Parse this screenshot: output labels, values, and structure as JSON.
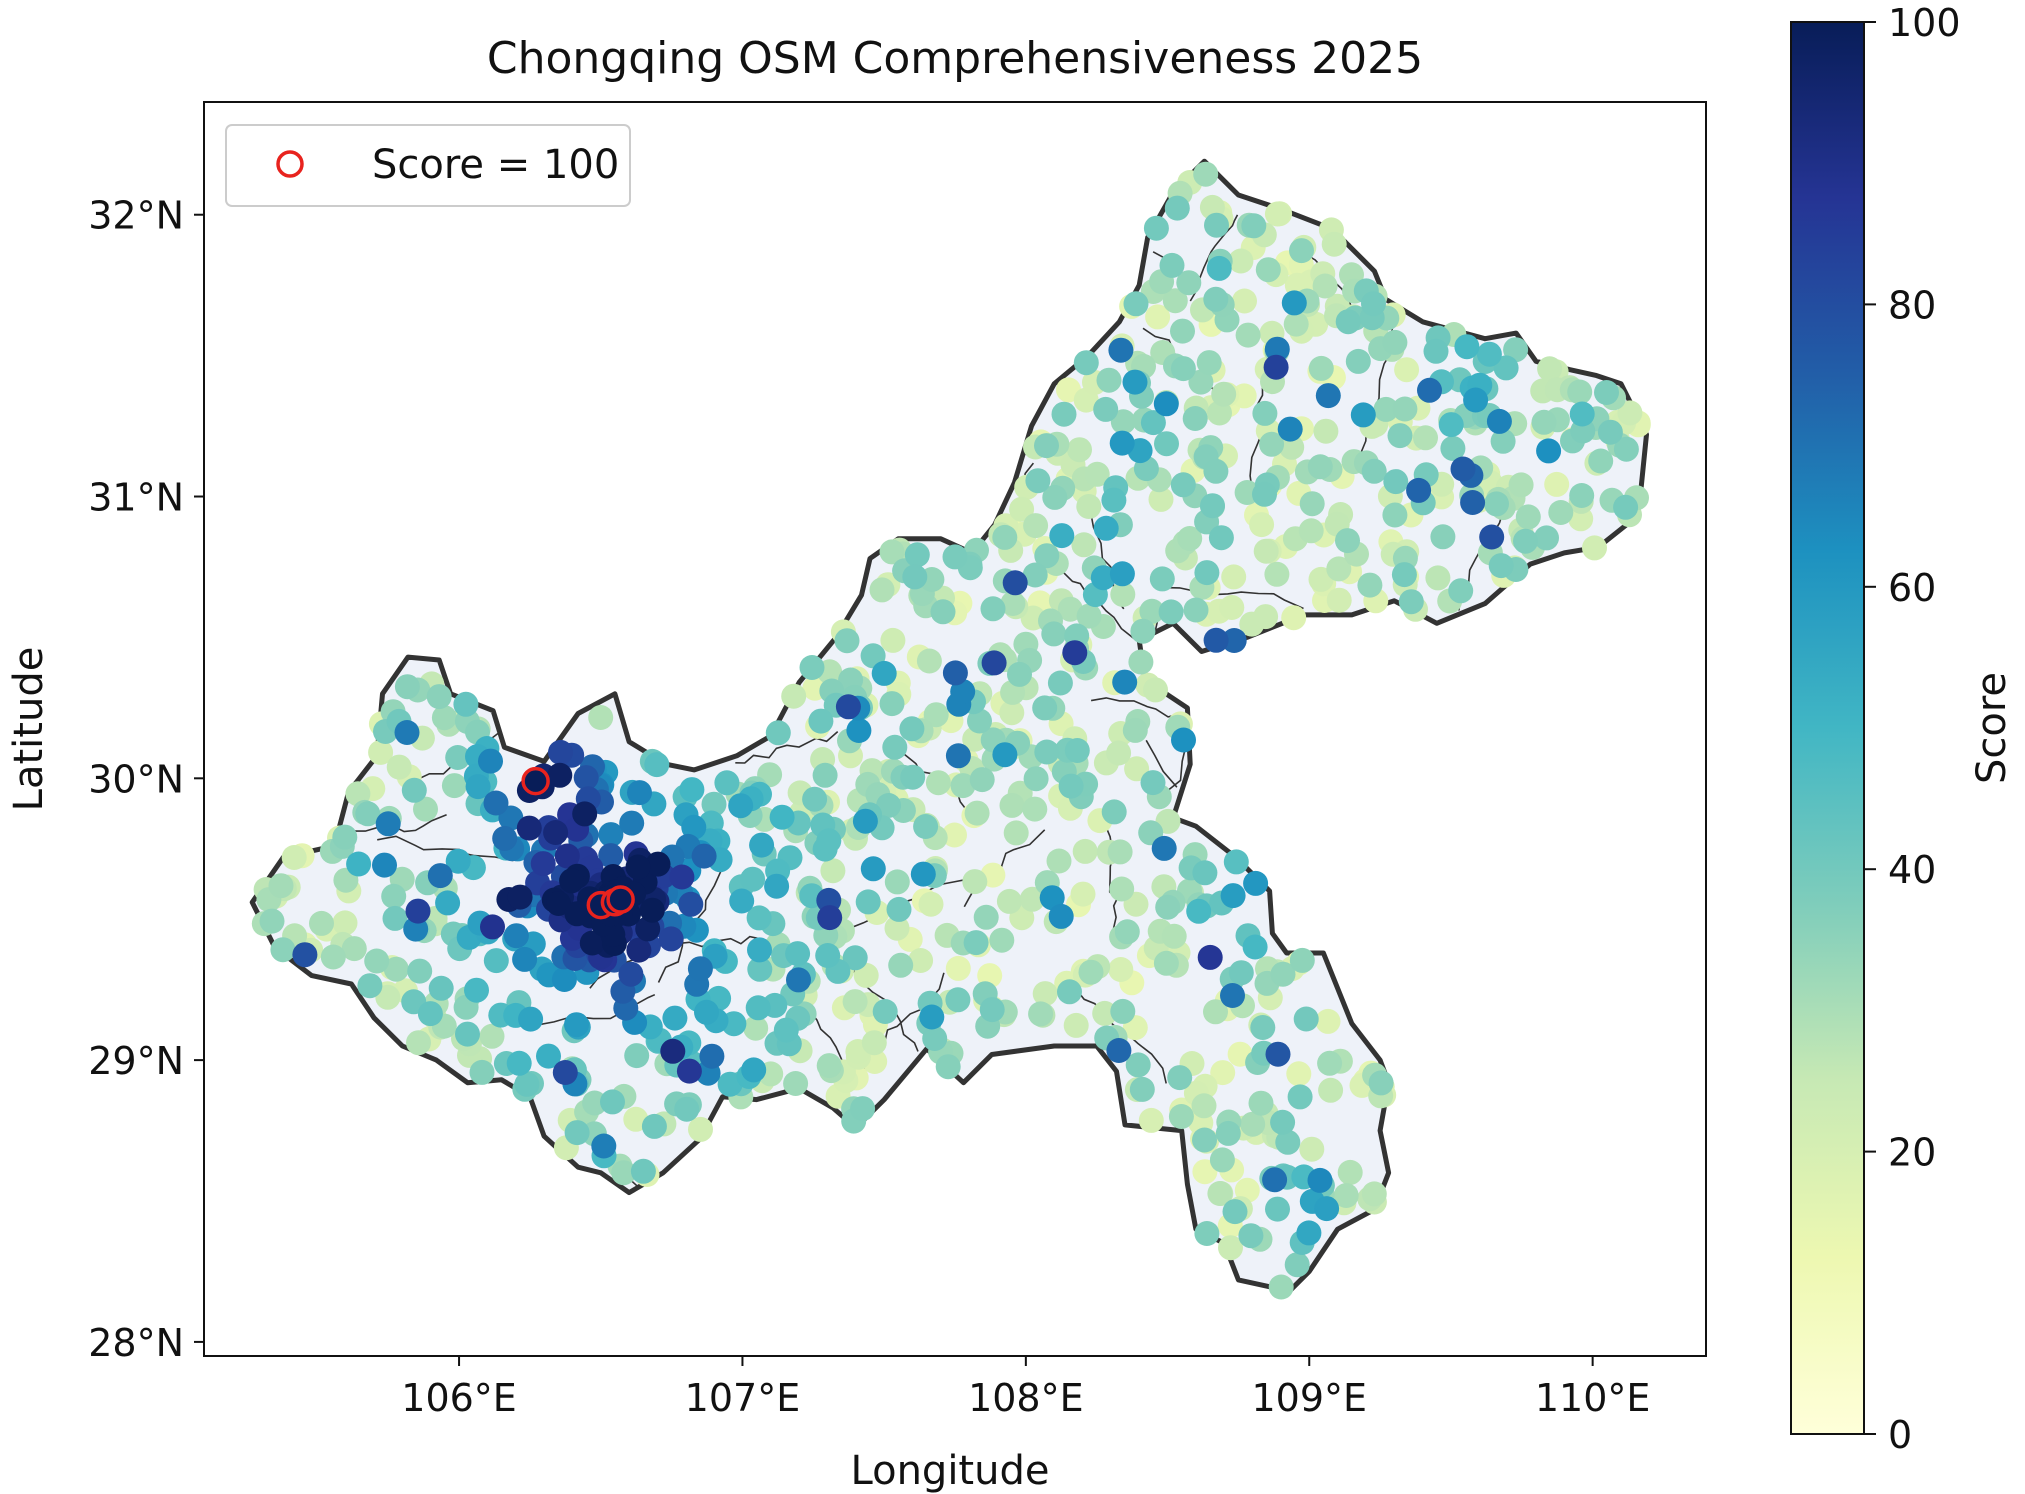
{
  "chart_data": {
    "type": "scatter",
    "title": "Chongqing OSM Comprehensiveness 2025",
    "xlabel": "Longitude",
    "ylabel": "Latitude",
    "xlim": [
      105.1,
      110.4
    ],
    "ylim": [
      27.95,
      32.4
    ],
    "x_ticks": [
      {
        "value": 106,
        "label": "106°E"
      },
      {
        "value": 107,
        "label": "107°E"
      },
      {
        "value": 108,
        "label": "108°E"
      },
      {
        "value": 109,
        "label": "109°E"
      },
      {
        "value": 110,
        "label": "110°E"
      }
    ],
    "y_ticks": [
      {
        "value": 28,
        "label": "28°N"
      },
      {
        "value": 29,
        "label": "29°N"
      },
      {
        "value": 30,
        "label": "30°N"
      },
      {
        "value": 31,
        "label": "31°N"
      },
      {
        "value": 32,
        "label": "32°N"
      }
    ],
    "colorbar": {
      "label": "Score",
      "colormap": "YlGnBu",
      "range": [
        0,
        100
      ],
      "ticks": [
        {
          "value": 0,
          "label": "0"
        },
        {
          "value": 20,
          "label": "20"
        },
        {
          "value": 40,
          "label": "40"
        },
        {
          "value": 60,
          "label": "60"
        },
        {
          "value": 80,
          "label": "80"
        },
        {
          "value": 100,
          "label": "100"
        }
      ],
      "stops": [
        "#ffffd9",
        "#edf8b1",
        "#c7e9b4",
        "#7fcdbb",
        "#41b6c4",
        "#1d91c0",
        "#225ea8",
        "#253494",
        "#081d58"
      ]
    },
    "legend": {
      "label": "Score = 100",
      "placement": "upper-left",
      "marker_color": "#e8231e"
    },
    "highlighted_score_100": [
      {
        "lon": 106.27,
        "lat": 29.99
      },
      {
        "lon": 106.5,
        "lat": 29.55
      },
      {
        "lon": 106.55,
        "lat": 29.56
      },
      {
        "lon": 106.57,
        "lat": 29.57
      }
    ],
    "region_outline": [
      [
        105.27,
        29.56
      ],
      [
        105.38,
        29.72
      ],
      [
        105.56,
        29.76
      ],
      [
        105.61,
        29.95
      ],
      [
        105.71,
        30.08
      ],
      [
        105.73,
        30.3
      ],
      [
        105.82,
        30.43
      ],
      [
        105.93,
        30.42
      ],
      [
        105.97,
        30.3
      ],
      [
        106.12,
        30.24
      ],
      [
        106.16,
        30.11
      ],
      [
        106.3,
        30.06
      ],
      [
        106.42,
        30.23
      ],
      [
        106.55,
        30.3
      ],
      [
        106.6,
        30.13
      ],
      [
        106.73,
        30.05
      ],
      [
        106.83,
        30.03
      ],
      [
        106.98,
        30.08
      ],
      [
        107.1,
        30.15
      ],
      [
        107.2,
        30.34
      ],
      [
        107.33,
        30.5
      ],
      [
        107.42,
        30.65
      ],
      [
        107.45,
        30.78
      ],
      [
        107.55,
        30.85
      ],
      [
        107.7,
        30.85
      ],
      [
        107.81,
        30.8
      ],
      [
        107.89,
        30.9
      ],
      [
        107.96,
        31.05
      ],
      [
        108.02,
        31.25
      ],
      [
        108.1,
        31.4
      ],
      [
        108.22,
        31.5
      ],
      [
        108.33,
        31.62
      ],
      [
        108.4,
        31.75
      ],
      [
        108.43,
        31.92
      ],
      [
        108.52,
        32.08
      ],
      [
        108.63,
        32.19
      ],
      [
        108.75,
        32.07
      ],
      [
        108.9,
        32.02
      ],
      [
        109.08,
        31.95
      ],
      [
        109.23,
        31.8
      ],
      [
        109.27,
        31.7
      ],
      [
        109.4,
        31.62
      ],
      [
        109.62,
        31.56
      ],
      [
        109.73,
        31.58
      ],
      [
        109.8,
        31.48
      ],
      [
        109.92,
        31.45
      ],
      [
        110.01,
        31.43
      ],
      [
        110.1,
        31.4
      ],
      [
        110.19,
        31.22
      ],
      [
        110.17,
        31.02
      ],
      [
        110.12,
        30.9
      ],
      [
        110.02,
        30.82
      ],
      [
        109.9,
        30.8
      ],
      [
        109.78,
        30.76
      ],
      [
        109.62,
        30.62
      ],
      [
        109.45,
        30.55
      ],
      [
        109.3,
        30.63
      ],
      [
        109.15,
        30.58
      ],
      [
        108.98,
        30.58
      ],
      [
        108.78,
        30.5
      ],
      [
        108.62,
        30.45
      ],
      [
        108.52,
        30.55
      ],
      [
        108.4,
        30.49
      ],
      [
        108.42,
        30.35
      ],
      [
        108.57,
        30.25
      ],
      [
        108.58,
        30.05
      ],
      [
        108.52,
        29.86
      ],
      [
        108.6,
        29.83
      ],
      [
        108.74,
        29.72
      ],
      [
        108.86,
        29.6
      ],
      [
        108.87,
        29.45
      ],
      [
        108.92,
        29.38
      ],
      [
        109.05,
        29.38
      ],
      [
        109.15,
        29.13
      ],
      [
        109.25,
        29.0
      ],
      [
        109.28,
        28.92
      ],
      [
        109.25,
        28.75
      ],
      [
        109.28,
        28.6
      ],
      [
        109.23,
        28.47
      ],
      [
        109.1,
        28.4
      ],
      [
        109.0,
        28.25
      ],
      [
        108.93,
        28.18
      ],
      [
        108.75,
        28.22
      ],
      [
        108.7,
        28.35
      ],
      [
        108.6,
        28.4
      ],
      [
        108.57,
        28.56
      ],
      [
        108.55,
        28.75
      ],
      [
        108.35,
        28.77
      ],
      [
        108.32,
        28.96
      ],
      [
        108.25,
        29.05
      ],
      [
        108.1,
        29.05
      ],
      [
        107.88,
        29.02
      ],
      [
        107.78,
        28.92
      ],
      [
        107.65,
        29.04
      ],
      [
        107.5,
        28.86
      ],
      [
        107.4,
        28.76
      ],
      [
        107.32,
        28.83
      ],
      [
        107.2,
        28.9
      ],
      [
        107.05,
        28.86
      ],
      [
        106.93,
        28.87
      ],
      [
        106.85,
        28.72
      ],
      [
        106.72,
        28.6
      ],
      [
        106.6,
        28.53
      ],
      [
        106.5,
        28.6
      ],
      [
        106.42,
        28.62
      ],
      [
        106.3,
        28.73
      ],
      [
        106.25,
        28.87
      ],
      [
        106.15,
        28.93
      ],
      [
        106.03,
        28.92
      ],
      [
        105.92,
        29.0
      ],
      [
        105.8,
        29.05
      ],
      [
        105.7,
        29.15
      ],
      [
        105.62,
        29.27
      ],
      [
        105.48,
        29.3
      ],
      [
        105.35,
        29.4
      ],
      [
        105.27,
        29.56
      ]
    ]
  }
}
